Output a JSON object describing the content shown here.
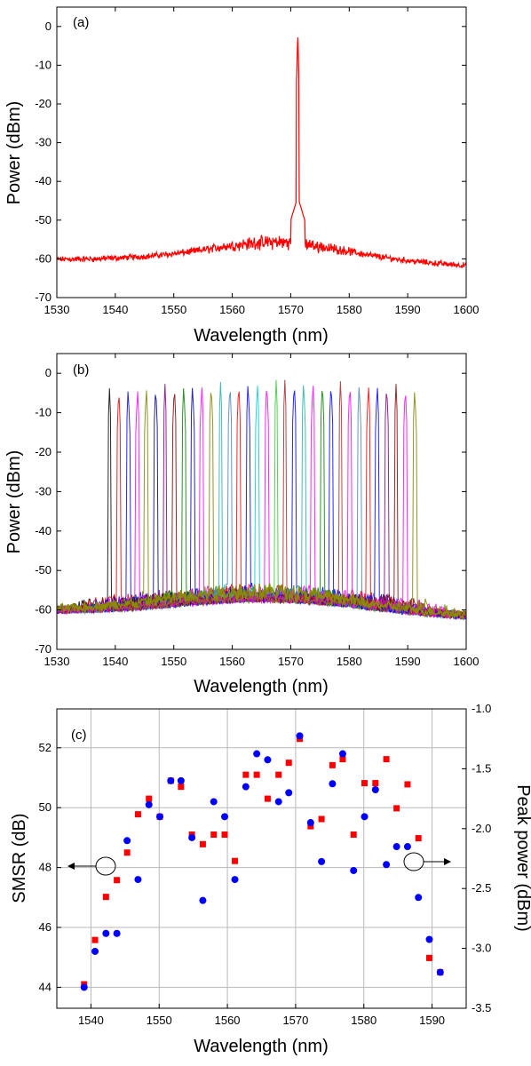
{
  "chart_data": [
    {
      "panel_label": "(a)",
      "type": "line",
      "xlabel": "Wavelength (nm)",
      "ylabel": "Power (dBm)",
      "xlim": [
        1530,
        1600
      ],
      "ylim": [
        -70,
        5
      ],
      "xticks": [
        "1530",
        "1540",
        "1550",
        "1560",
        "1570",
        "1580",
        "1590",
        "1600"
      ],
      "yticks": [
        "-70",
        "-60",
        "-50",
        "-40",
        "-30",
        "-20",
        "-10",
        "0"
      ],
      "grid": false,
      "series": [
        {
          "color": "#ff0000",
          "peak_wavelength": 1571.2,
          "peak_power": -1.5,
          "floor_start": -61,
          "floor_end": -63,
          "floor_max": -57
        }
      ]
    },
    {
      "panel_label": "(b)",
      "type": "line",
      "xlabel": "Wavelength (nm)",
      "ylabel": "Power (dBm)",
      "xlim": [
        1530,
        1600
      ],
      "ylim": [
        -70,
        5
      ],
      "xticks": [
        "1530",
        "1540",
        "1550",
        "1560",
        "1570",
        "1580",
        "1590",
        "1600"
      ],
      "yticks": [
        "-70",
        "-60",
        "-50",
        "-40",
        "-30",
        "-20",
        "-10",
        "0"
      ],
      "grid": false,
      "peaks": [
        {
          "x": 1539.0,
          "y": -3.8,
          "color": "#000000"
        },
        {
          "x": 1540.6,
          "y": -3.5,
          "color": "#e00000"
        },
        {
          "x": 1542.2,
          "y": -3.3,
          "color": "#0000ff"
        },
        {
          "x": 1543.8,
          "y": -3.3,
          "color": "#ff00ff"
        },
        {
          "x": 1545.3,
          "y": -3.0,
          "color": "#808000"
        },
        {
          "x": 1546.9,
          "y": -2.8,
          "color": "#000080"
        },
        {
          "x": 1548.5,
          "y": -2.7,
          "color": "#800080"
        },
        {
          "x": 1550.1,
          "y": -2.6,
          "color": "#800000"
        },
        {
          "x": 1551.7,
          "y": -2.5,
          "color": "#008000"
        },
        {
          "x": 1553.2,
          "y": -2.4,
          "color": "#0000a0"
        },
        {
          "x": 1554.8,
          "y": -2.3,
          "color": "#ff00ff"
        },
        {
          "x": 1556.4,
          "y": -2.3,
          "color": "#808000"
        },
        {
          "x": 1558.0,
          "y": -2.2,
          "color": "#20b2aa"
        },
        {
          "x": 1559.6,
          "y": -2.1,
          "color": "#4682b4"
        },
        {
          "x": 1561.1,
          "y": -2.0,
          "color": "#ff0000"
        },
        {
          "x": 1562.7,
          "y": -1.9,
          "color": "#0000ff"
        },
        {
          "x": 1564.3,
          "y": -1.8,
          "color": "#00ced1"
        },
        {
          "x": 1565.9,
          "y": -1.8,
          "color": "#ff00ff"
        },
        {
          "x": 1567.5,
          "y": -1.7,
          "color": "#32cd32"
        },
        {
          "x": 1569.0,
          "y": -1.7,
          "color": "#a52a2a"
        },
        {
          "x": 1570.6,
          "y": -1.7,
          "color": "#0000ff"
        },
        {
          "x": 1572.2,
          "y": -1.7,
          "color": "#20b2aa"
        },
        {
          "x": 1573.8,
          "y": -1.8,
          "color": "#ff00ff"
        },
        {
          "x": 1575.4,
          "y": -1.8,
          "color": "#008000"
        },
        {
          "x": 1576.9,
          "y": -1.9,
          "color": "#0000ff"
        },
        {
          "x": 1578.5,
          "y": -2.0,
          "color": "#a52a2a"
        },
        {
          "x": 1580.1,
          "y": -2.1,
          "color": "#ff00ff"
        },
        {
          "x": 1581.7,
          "y": -2.2,
          "color": "#4682b4"
        },
        {
          "x": 1583.3,
          "y": -2.3,
          "color": "#ff0000"
        },
        {
          "x": 1584.8,
          "y": -2.4,
          "color": "#0000ff"
        },
        {
          "x": 1586.4,
          "y": -2.5,
          "color": "#800080"
        },
        {
          "x": 1588.0,
          "y": -2.7,
          "color": "#8b0000"
        },
        {
          "x": 1589.6,
          "y": -3.0,
          "color": "#ff00ff"
        },
        {
          "x": 1591.2,
          "y": -3.5,
          "color": "#808000"
        }
      ]
    },
    {
      "panel_label": "(c)",
      "type": "scatter",
      "xlabel": "Wavelength (nm)",
      "ylabel": "SMSR (dB)",
      "y2label": "Peak power (dBm)",
      "xlim": [
        1535,
        1595
      ],
      "ylim": [
        43.3,
        53.3
      ],
      "y2lim": [
        -3.5,
        -1.0
      ],
      "xticks": [
        "1540",
        "1550",
        "1560",
        "1570",
        "1580",
        "1590"
      ],
      "yticks": [
        "44",
        "46",
        "48",
        "50",
        "52"
      ],
      "y2ticks": [
        "-3.5",
        "-3.0",
        "-2.5",
        "-2.0",
        "-1.5",
        "-1.0"
      ],
      "grid": true,
      "series": [
        {
          "marker": "circle",
          "color": "#0000ff",
          "axis": "SMSR (dB)",
          "x": [
            1539.0,
            1540.6,
            1542.2,
            1543.8,
            1545.3,
            1546.9,
            1548.5,
            1550.1,
            1551.7,
            1553.2,
            1554.8,
            1556.4,
            1558.0,
            1559.6,
            1561.1,
            1562.7,
            1564.3,
            1565.9,
            1567.5,
            1569.0,
            1570.6,
            1572.2,
            1573.8,
            1575.4,
            1576.9,
            1578.5,
            1580.1,
            1581.7,
            1583.3,
            1584.8,
            1586.4,
            1588.0,
            1589.6,
            1591.2
          ],
          "y": [
            44.0,
            45.2,
            45.8,
            45.8,
            48.9,
            47.6,
            50.1,
            49.7,
            50.9,
            50.9,
            49.0,
            46.9,
            50.2,
            49.7,
            47.6,
            50.7,
            51.8,
            51.6,
            50.2,
            50.5,
            52.4,
            49.5,
            48.2,
            50.8,
            51.8,
            47.9,
            49.7,
            50.6,
            48.1,
            48.7,
            48.7,
            47.0,
            45.6,
            44.5
          ]
        },
        {
          "marker": "square",
          "color": "#ff0000",
          "axis": "Peak power (dBm)",
          "x": [
            1539.0,
            1540.6,
            1542.2,
            1543.8,
            1545.3,
            1546.9,
            1548.5,
            1550.1,
            1551.7,
            1553.2,
            1554.8,
            1556.4,
            1558.0,
            1559.6,
            1561.1,
            1562.7,
            1564.3,
            1565.9,
            1567.5,
            1569.0,
            1570.6,
            1572.2,
            1573.8,
            1575.4,
            1576.9,
            1578.5,
            1580.1,
            1581.7,
            1583.3,
            1584.8,
            1586.4,
            1588.0,
            1589.6,
            1591.2
          ],
          "y": [
            -3.3,
            -2.93,
            -2.57,
            -2.43,
            -2.2,
            -1.88,
            -1.75,
            -1.9,
            -1.6,
            -1.65,
            -2.05,
            -2.13,
            -2.05,
            -2.05,
            -2.27,
            -1.55,
            -1.55,
            -1.75,
            -1.55,
            -1.45,
            -1.25,
            -1.98,
            -1.92,
            -1.47,
            -1.42,
            -2.05,
            -1.62,
            -1.62,
            -1.42,
            -1.83,
            -1.63,
            -2.08,
            -3.08,
            -3.2
          ]
        }
      ]
    }
  ]
}
